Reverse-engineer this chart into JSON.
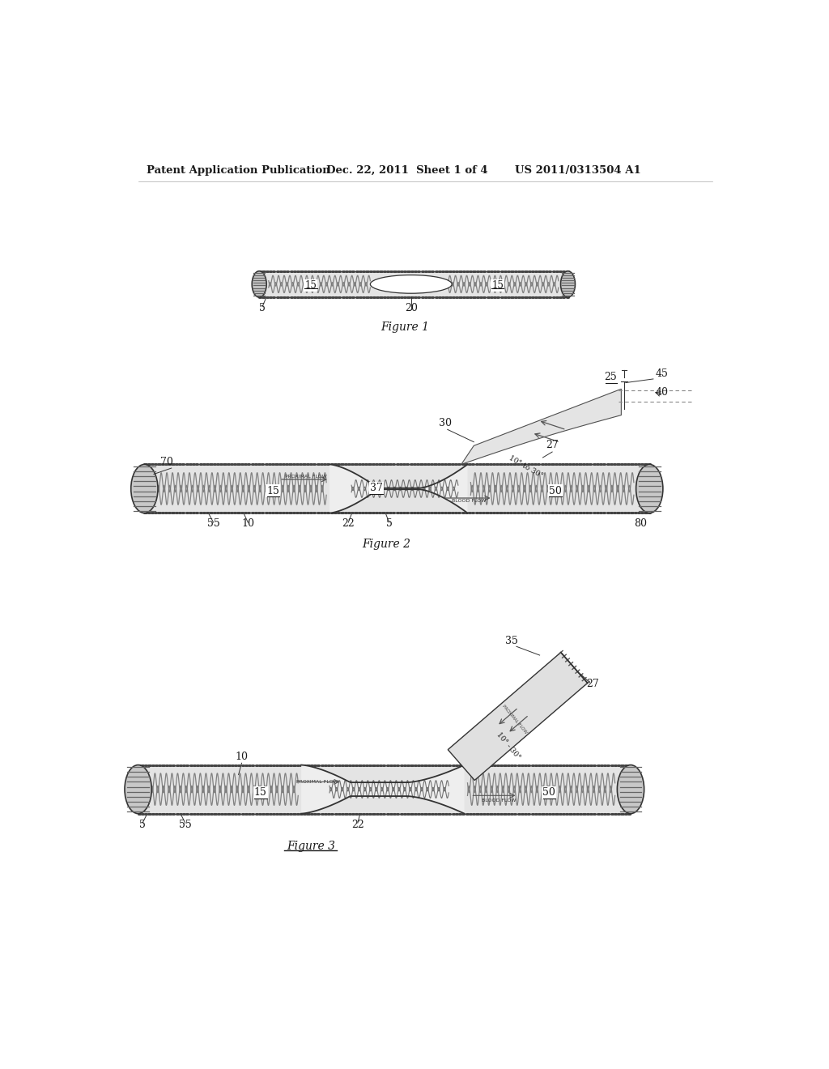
{
  "bg_color": "#ffffff",
  "header_left": "Patent Application Publication",
  "header_mid": "Dec. 22, 2011  Sheet 1 of 4",
  "header_right": "US 2011/0313504 A1",
  "fig1_caption": "Figure 1",
  "fig2_caption": "Figure 2",
  "fig3_caption": "Figure 3",
  "text_color": "#1a1a1a",
  "line_color": "#333333"
}
